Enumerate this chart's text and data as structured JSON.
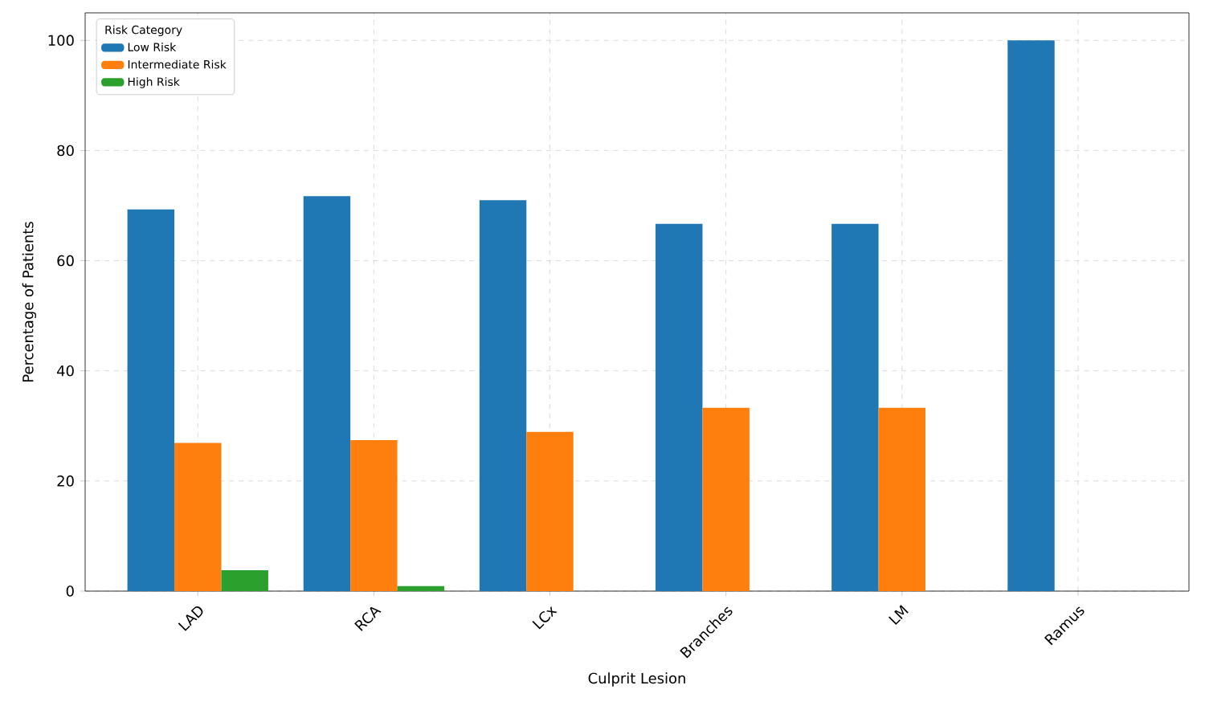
{
  "chart_data": {
    "type": "bar",
    "xlabel": "Culprit Lesion",
    "ylabel": "Percentage of Patients",
    "categories": [
      "LAD",
      "RCA",
      "LCx",
      "Branches",
      "LM",
      "Ramus"
    ],
    "series": [
      {
        "name": "Low Risk",
        "color": "#1f77b4",
        "values": [
          69.3,
          71.7,
          71.0,
          66.7,
          66.7,
          100
        ]
      },
      {
        "name": "Intermediate Risk",
        "color": "#ff7f0e",
        "values": [
          26.9,
          27.4,
          28.9,
          33.3,
          33.3,
          0
        ]
      },
      {
        "name": "High Risk",
        "color": "#2ca02c",
        "values": [
          3.8,
          0.9,
          0,
          0,
          0,
          0
        ]
      }
    ],
    "legend_title": "Risk Category",
    "legend": "top left",
    "ylim": [
      0,
      105
    ],
    "yticks": [
      0,
      20,
      40,
      60,
      80,
      100
    ],
    "grid": true
  }
}
